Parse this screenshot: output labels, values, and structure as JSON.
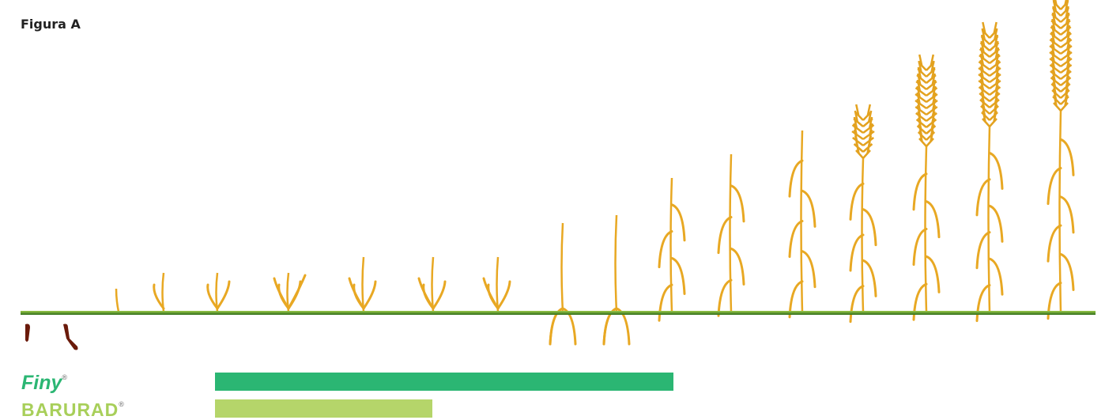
{
  "title": "Figura A",
  "products": [
    {
      "name": "Finy",
      "mark": "®"
    },
    {
      "name": "BARURAD",
      "mark": "®"
    }
  ]
}
